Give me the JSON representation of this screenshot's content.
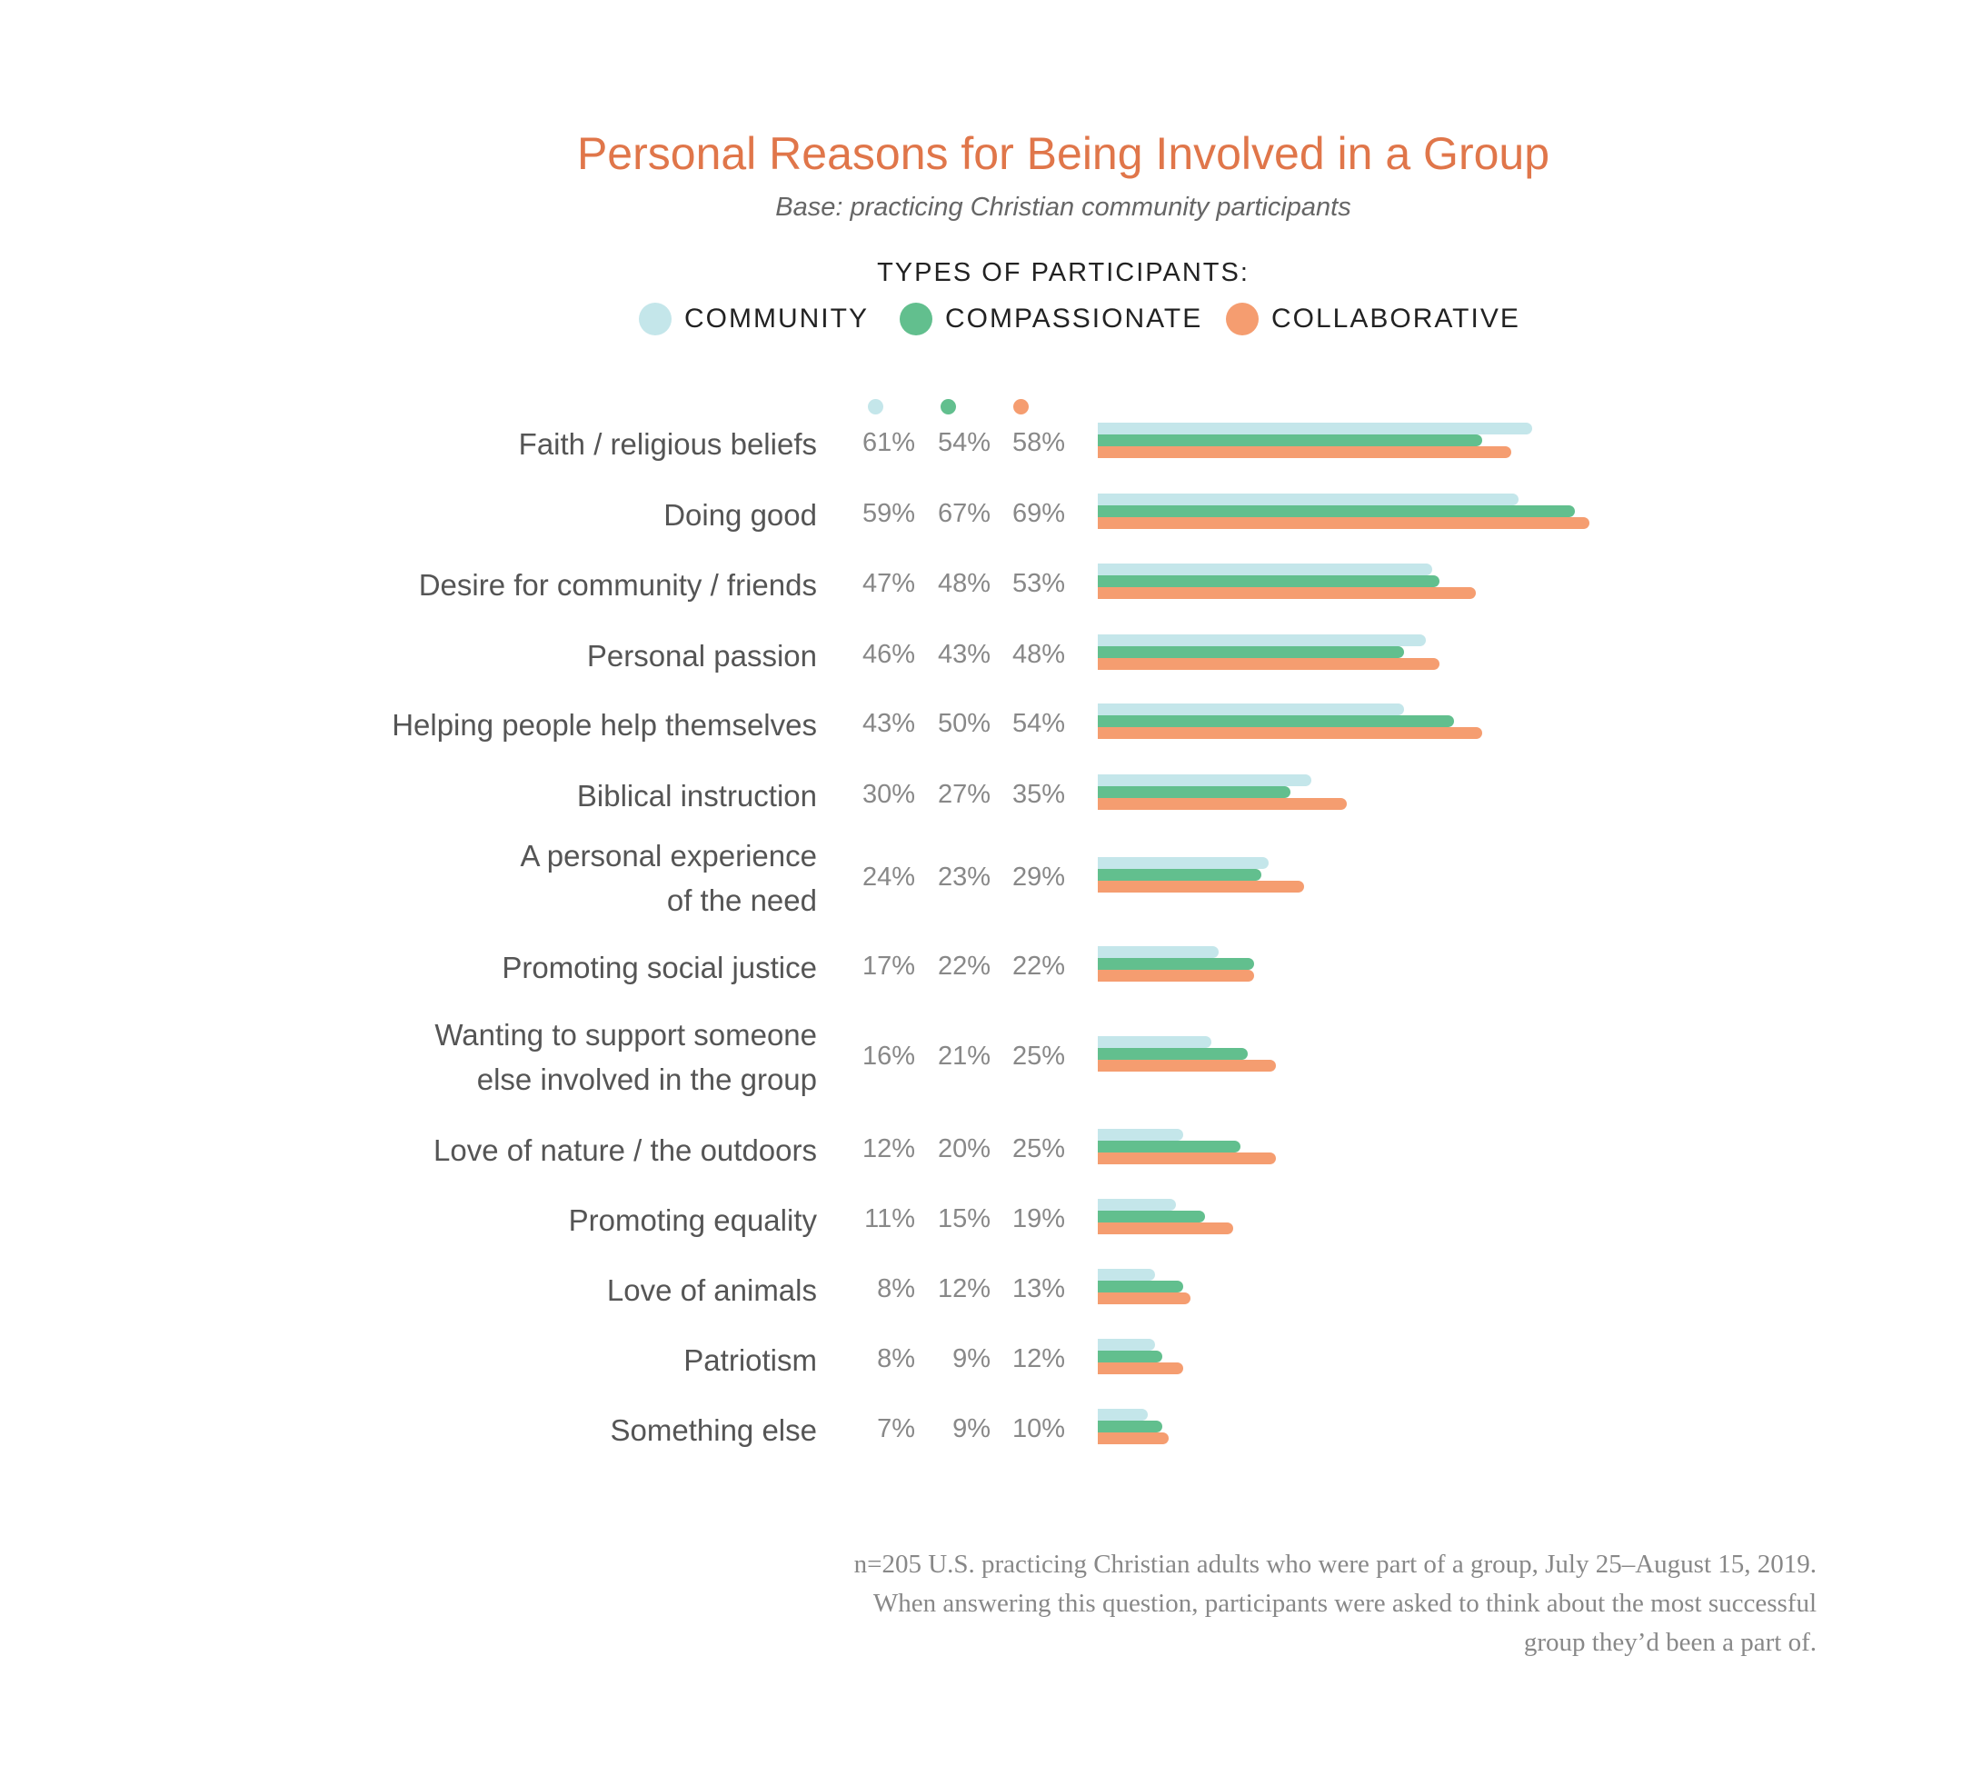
{
  "chart_data": {
    "type": "bar",
    "orientation": "horizontal",
    "title": "Personal Reasons for Being Involved in a Group",
    "subtitle": "Base: practicing Christian community participants",
    "legend_title": "TYPES OF PARTICIPANTS:",
    "legend_placement": "top",
    "grid": false,
    "xlim": [
      0,
      70
    ],
    "unit": "%",
    "categories": [
      [
        "Faith / religious beliefs"
      ],
      [
        "Doing good"
      ],
      [
        "Desire for community / friends"
      ],
      [
        "Personal passion"
      ],
      [
        "Helping people help themselves"
      ],
      [
        "Biblical instruction"
      ],
      [
        "A personal experience",
        "of the need"
      ],
      [
        "Promoting social justice"
      ],
      [
        "Wanting to support someone",
        "else involved in the group"
      ],
      [
        "Love of nature / the outdoors"
      ],
      [
        "Promoting equality"
      ],
      [
        "Love of animals"
      ],
      [
        "Patriotism"
      ],
      [
        "Something else"
      ]
    ],
    "series": [
      {
        "name": "COMMUNITY",
        "color": "#c4e6ea",
        "values": [
          61,
          59,
          47,
          46,
          43,
          30,
          24,
          17,
          16,
          12,
          11,
          8,
          8,
          7
        ]
      },
      {
        "name": "COMPASSIONATE",
        "color": "#62bf8e",
        "values": [
          54,
          67,
          48,
          43,
          50,
          27,
          23,
          22,
          21,
          20,
          15,
          12,
          9,
          9
        ]
      },
      {
        "name": "COLLABORATIVE",
        "color": "#f59d70",
        "values": [
          58,
          69,
          53,
          48,
          54,
          35,
          29,
          22,
          25,
          25,
          19,
          13,
          12,
          10
        ]
      }
    ]
  },
  "footnote": [
    "n=205 U.S. practicing Christian adults who were part of a group, July 25–August 15, 2019.",
    "When answering this question, participants were asked to think about the most successful",
    "group they’d been a part of."
  ]
}
